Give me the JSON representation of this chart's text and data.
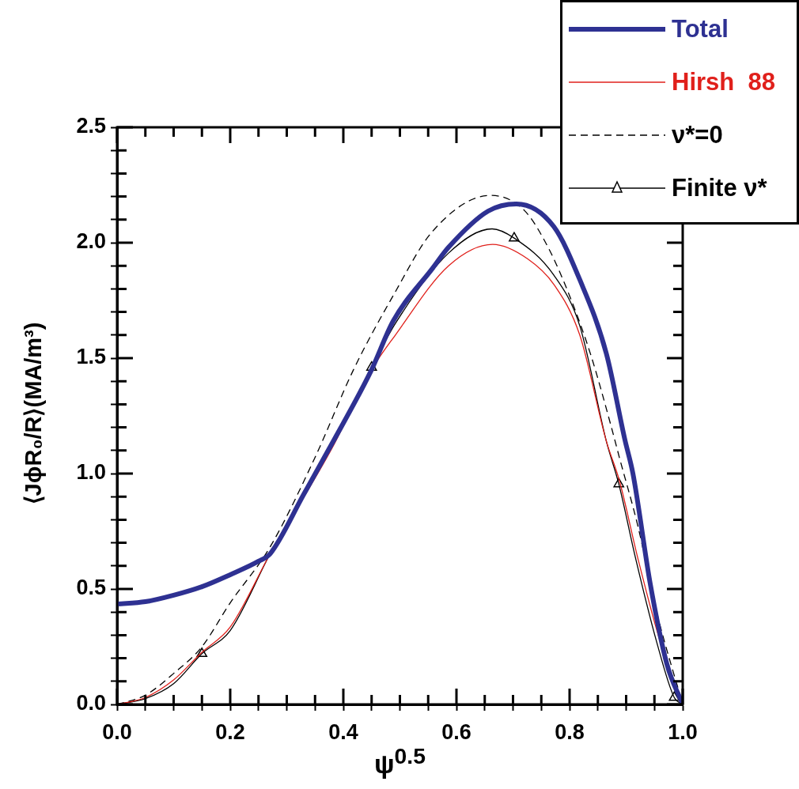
{
  "chart_data": {
    "type": "line",
    "xlabel": "ψ$^{0.5}$",
    "ylabel": "⟨JϕR₀/R⟩(MA/m³)",
    "xlim": [
      0,
      1
    ],
    "ylim": [
      0,
      2.5
    ],
    "xticks": [
      {
        "value": 0,
        "label": "0.0"
      },
      {
        "value": 0.05,
        "label": null
      },
      {
        "value": 0.1,
        "label": null
      },
      {
        "value": 0.15,
        "label": null
      },
      0.2,
      {
        "value": 0.25,
        "label": null
      },
      {
        "value": 0.3,
        "label": null
      },
      {
        "value": 0.35,
        "label": null
      },
      0.4,
      {
        "value": 0.45,
        "label": null
      },
      {
        "value": 0.5,
        "label": null
      },
      {
        "value": 0.55,
        "label": null
      },
      0.6,
      {
        "value": 0.65,
        "label": null
      },
      {
        "value": 0.7,
        "label": null
      },
      {
        "value": 0.75,
        "label": null
      },
      0.8,
      {
        "value": 0.85,
        "label": null
      },
      {
        "value": 0.9,
        "label": null
      },
      {
        "value": 0.95,
        "label": null
      },
      {
        "value": 1,
        "label": "1.0"
      }
    ],
    "yticks": [
      {
        "value": 0,
        "label": "0.0"
      },
      {
        "value": 0.1,
        "label": null
      },
      {
        "value": 0.2,
        "label": null
      },
      {
        "value": 0.3,
        "label": null
      },
      {
        "value": 0.4,
        "label": null
      },
      0.5,
      {
        "value": 0.6,
        "label": null
      },
      {
        "value": 0.7,
        "label": null
      },
      {
        "value": 0.8,
        "label": null
      },
      {
        "value": 0.9,
        "label": null
      },
      {
        "value": 1,
        "label": "1.0"
      },
      {
        "value": 1.1,
        "label": null
      },
      {
        "value": 1.2,
        "label": null
      },
      {
        "value": 1.3,
        "label": null
      },
      {
        "value": 1.4,
        "label": null
      },
      1.5,
      {
        "value": 1.6,
        "label": null
      },
      {
        "value": 1.7,
        "label": null
      },
      {
        "value": 1.8,
        "label": null
      },
      {
        "value": 1.9,
        "label": null
      },
      {
        "value": 2,
        "label": "2.0"
      },
      {
        "value": 2.1,
        "label": null
      },
      {
        "value": 2.2,
        "label": null
      },
      {
        "value": 2.3,
        "label": null
      },
      {
        "value": 2.4,
        "label": null
      },
      2.5
    ],
    "grid": false,
    "legend": "top right",
    "series": [
      {
        "name": "Total",
        "color": "#2e3192",
        "x": [
          0,
          0.05,
          0.1,
          0.15,
          0.2,
          0.25,
          0.271,
          0.33,
          0.38,
          0.45,
          0.488,
          0.558,
          0.586,
          0.656,
          0.706,
          0.772,
          0.818,
          0.865,
          0.898,
          0.912,
          0.943,
          0.972,
          1.0
        ],
        "values": [
          0.435,
          0.445,
          0.473,
          0.51,
          0.562,
          0.62,
          0.654,
          0.91,
          1.13,
          1.45,
          1.66,
          1.89,
          1.98,
          2.137,
          2.168,
          2.07,
          1.84,
          1.52,
          1.144,
          1.0,
          0.517,
          0.175,
          0
        ]
      },
      {
        "name": "Hirsh  88",
        "color": "#e0201b",
        "x": [
          0,
          0.05,
          0.1,
          0.15,
          0.2,
          0.271,
          0.38,
          0.45,
          0.492,
          0.586,
          0.664,
          0.726,
          0.772,
          0.818,
          0.865,
          0.888,
          0.921,
          0.958,
          1.0
        ],
        "values": [
          0,
          0.03,
          0.106,
          0.226,
          0.335,
          0.654,
          1.11,
          1.45,
          1.6,
          1.9,
          1.993,
          1.93,
          1.82,
          1.6,
          1.14,
          0.97,
          0.63,
          0.29,
          0
        ]
      },
      {
        "name": "ν*=0",
        "color": "#000000",
        "line_style": "dashed",
        "x": [
          0,
          0.05,
          0.1,
          0.15,
          0.2,
          0.27,
          0.35,
          0.418,
          0.488,
          0.558,
          0.66,
          0.72,
          0.762,
          0.8,
          0.838,
          0.874,
          0.888,
          0.921,
          0.954,
          1.0
        ],
        "values": [
          0,
          0.04,
          0.134,
          0.25,
          0.44,
          0.68,
          1.07,
          1.45,
          1.77,
          2.05,
          2.205,
          2.14,
          1.98,
          1.77,
          1.51,
          1.2,
          1.07,
          0.77,
          0.4,
          0
        ]
      },
      {
        "name": "Finite ν*",
        "color": "#000000",
        "x": [
          0,
          0.05,
          0.1,
          0.15,
          0.2,
          0.27,
          0.38,
          0.45,
          0.492,
          0.586,
          0.663,
          0.702,
          0.772,
          0.818,
          0.865,
          0.887,
          0.917,
          0.954,
          0.985,
          1.0
        ],
        "values": [
          0,
          0.025,
          0.09,
          0.22,
          0.32,
          0.65,
          1.13,
          1.46,
          1.65,
          1.955,
          2.06,
          2.02,
          1.86,
          1.64,
          1.14,
          0.955,
          0.63,
          0.27,
          0.03,
          0
        ]
      },
      {
        "type": "scatter",
        "color": "#000000",
        "marker": "triangle",
        "x": [
          0.15,
          0.45,
          0.702,
          0.887,
          0.985
        ],
        "values": [
          0.22,
          1.46,
          2.02,
          0.955,
          0.03
        ]
      }
    ]
  }
}
